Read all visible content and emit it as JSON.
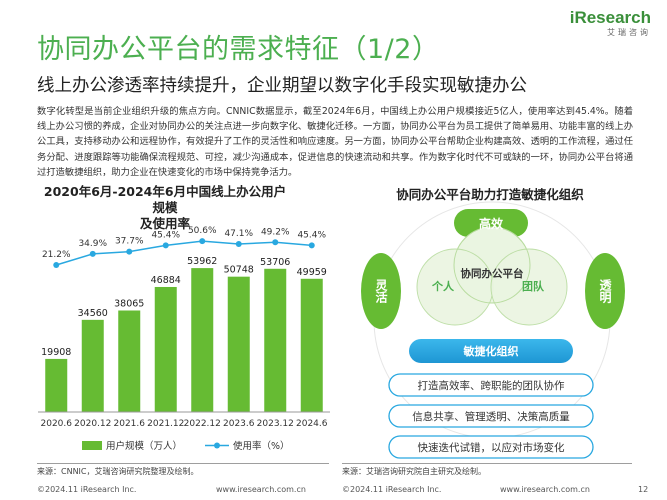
{
  "header": {
    "title": "协同办公平台的需求特征（1/2）",
    "subtitle": "线上办公渗透率持续提升，企业期望以数字化手段实现敏捷办公",
    "brand_logo": "iResearch",
    "brand_cn": "艾瑞咨询"
  },
  "intro": "数字化转型是当前企业组织升级的焦点方向。CNNIC数据显示，截至2024年6月，中国线上办公用户规模接近5亿人，使用率达到45.4%。随着线上办公习惯的养成，企业对协同办公的关注点进一步向数字化、敏捷化迁移。一方面，协同办公平台为员工提供了简单易用、功能丰富的线上办公工具，支持移动办公和远程协作，有效提升了工作的灵活性和响应速度。另一方面，协同办公平台帮助企业构建高效、透明的工作流程，通过任务分配、进度跟踪等功能确保流程规范、可控，减少沟通成本，促进信息的快速流动和共享。作为数字化时代不可或缺的一环，协同办公平台将通过打造敏捷组织，助力企业在快速变化的市场中保持竞争活力。",
  "chart_data": {
    "type": "bar",
    "title": "2020年6月-2024年6月中国线上办公用户规模及使用率",
    "title_line1": "2020年6月-2024年6月中国线上办公用户规模",
    "title_line2": "及使用率",
    "categories": [
      "2020.6",
      "2020.12",
      "2021.6",
      "2021.12",
      "2022.12",
      "2023.6",
      "2023.12",
      "2024.6"
    ],
    "series": [
      {
        "name": "用户规模（万人）",
        "type": "bar",
        "values": [
          19908,
          34560,
          38065,
          46884,
          53962,
          50748,
          53706,
          49959
        ],
        "color": "#66bb33"
      },
      {
        "name": "使用率（%）",
        "type": "line",
        "values": [
          21.2,
          34.9,
          37.7,
          45.4,
          50.6,
          47.1,
          49.2,
          45.4
        ],
        "labels": [
          "21.2%",
          "34.9%",
          "37.7%",
          "45.4%",
          "50.6%",
          "47.1%",
          "49.2%",
          "45.4%"
        ],
        "color": "#29a8e0"
      }
    ],
    "legend_position": "bottom",
    "grid": false
  },
  "diagram": {
    "title": "协同办公平台助力打造敏捷化组织",
    "top": "高效",
    "left": "灵活",
    "right": "透明",
    "center": "协同办公平台",
    "inner_left": "个人",
    "inner_right": "团队",
    "agile": "敏捷化组织",
    "items": [
      "打造高效率、跨职能的团队协作",
      "信息共享、管理透明、决策高质量",
      "快速迭代试错，以应对市场变化"
    ]
  },
  "footer": {
    "source_left": "来源：CNNIC，艾瑞咨询研究院整理及绘制。",
    "source_right": "来源：艾瑞咨询研究院自主研究及绘制。",
    "copyright_left": "©2024.11 iResearch Inc.",
    "url_left": "www.iresearch.com.cn",
    "copyright_right": "©2024.11 iResearch Inc.",
    "url_right": "www.iresearch.com.cn",
    "page": "12"
  },
  "colors": {
    "green": "#66bb33",
    "dark_green": "#4caf50",
    "blue": "#29a8e0",
    "circle_fill": "#e8f4df"
  }
}
